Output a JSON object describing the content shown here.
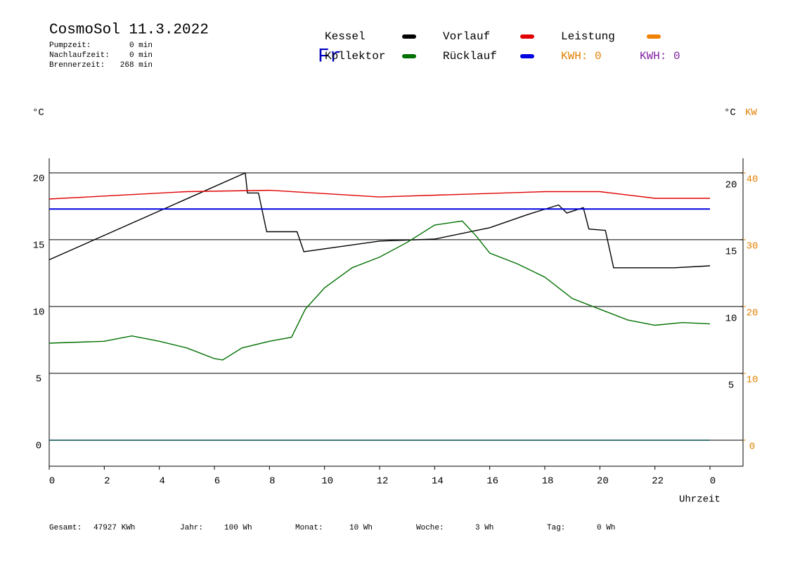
{
  "header": {
    "title": "CosmoSol 11.3.2022",
    "stats": [
      {
        "label": "Pumpzeit:",
        "value": "0 min"
      },
      {
        "label": "Nachlaufzeit:",
        "value": "0 min"
      },
      {
        "label": "Brennerzeit:",
        "value": "268 min"
      }
    ],
    "weekday": "Fr"
  },
  "chart_data": {
    "type": "line",
    "x_label": "Uhrzeit",
    "y_label": "°C",
    "y2_label": "°C",
    "y3_label": "KW",
    "series": [
      {
        "name": "Kessel",
        "color": "#000000",
        "x": [
          0,
          7.12,
          7.2,
          7.6,
          7.9,
          9.0,
          9.25,
          12,
          14,
          16,
          17.4,
          18.5,
          18.8,
          19.4,
          19.6,
          20.2,
          20.5,
          22.7,
          24
        ],
        "values": [
          13.5,
          20,
          18.5,
          18.5,
          15.6,
          15.6,
          14.1,
          14.9,
          15.05,
          15.9,
          16.9,
          17.6,
          17.0,
          17.4,
          15.8,
          15.7,
          12.9,
          12.9,
          13.05
        ]
      },
      {
        "name": "Kollektor",
        "color": "#007000",
        "x": [
          0,
          2,
          3,
          4,
          5,
          6,
          6.3,
          7,
          8,
          8.8,
          9.3,
          10,
          11,
          12,
          13,
          14,
          15,
          15.5,
          16,
          17,
          18,
          19,
          20,
          21,
          22,
          23,
          24
        ],
        "values": [
          7.26,
          7.4,
          7.8,
          7.4,
          6.9,
          6.1,
          6.0,
          6.9,
          7.4,
          7.7,
          9.8,
          11.4,
          12.9,
          13.7,
          14.8,
          16.1,
          16.4,
          15.3,
          14.0,
          13.2,
          12.2,
          10.6,
          9.8,
          9.0,
          8.6,
          8.8,
          8.7
        ]
      },
      {
        "name": "Vorlauf",
        "color": "#e00000",
        "x": [
          0,
          5,
          8,
          12,
          18,
          20,
          22,
          24
        ],
        "values": [
          18.05,
          18.6,
          18.7,
          18.2,
          18.6,
          18.6,
          18.1,
          18.1
        ]
      },
      {
        "name": "Rücklauf",
        "color": "#0000e0",
        "x": [
          0,
          24
        ],
        "values": [
          17.3,
          17.3
        ]
      },
      {
        "name": "Leistung",
        "color": "#f08000",
        "x": [],
        "values": []
      }
    ],
    "energy": [
      {
        "label": "KWH: 0",
        "color": "#e08000"
      },
      {
        "label": "KWH: 0",
        "color": "#8020a0"
      }
    ],
    "xlim": [
      0,
      25.2
    ],
    "xticks": [
      0,
      2,
      4,
      6,
      8,
      10,
      12,
      14,
      16,
      18,
      20,
      22,
      {
        "value": 24,
        "label": "0"
      }
    ],
    "ylim": [
      -1.95,
      21.1
    ],
    "yticks": [
      0,
      5,
      10,
      15,
      20
    ],
    "y2ticks": [
      5,
      10,
      15,
      20
    ],
    "y3lim": [
      -3.9,
      42.2
    ],
    "y3ticks": [
      0,
      10,
      20,
      30,
      40
    ],
    "y3color": "#e08000"
  },
  "footer": [
    {
      "label": "Gesamt:",
      "value": "47927 KWh"
    },
    {
      "label": "Jahr:",
      "value": "100 Wh"
    },
    {
      "label": "Monat:",
      "value": "10 Wh"
    },
    {
      "label": "Woche:",
      "value": "3 Wh"
    },
    {
      "label": "Tag:",
      "value": "0 Wh"
    }
  ]
}
